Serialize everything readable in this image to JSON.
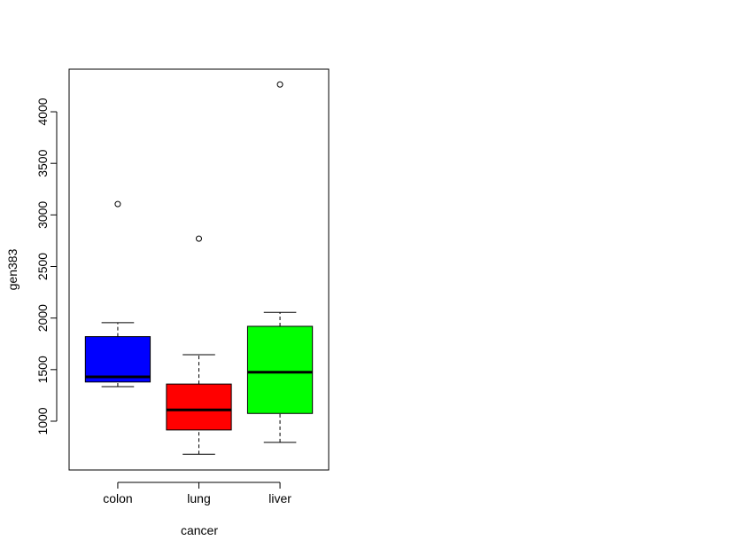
{
  "chart_data": {
    "type": "boxplot",
    "xlabel": "cancer",
    "ylabel": "gen383",
    "categories": [
      "colon",
      "lung",
      "liver"
    ],
    "boxes": [
      {
        "whisker_low": 1335,
        "q1": 1380,
        "median": 1430,
        "q3": 1820,
        "whisker_high": 1955,
        "outliers": [
          3105
        ],
        "color": "#0000ff"
      },
      {
        "whisker_low": 680,
        "q1": 915,
        "median": 1110,
        "q3": 1360,
        "whisker_high": 1645,
        "outliers": [
          2770
        ],
        "color": "#ff0000"
      },
      {
        "whisker_low": 795,
        "q1": 1075,
        "median": 1475,
        "q3": 1920,
        "whisker_high": 2055,
        "outliers": [
          4265
        ],
        "color": "#00ff00"
      }
    ],
    "ylim": [
      527,
      4413
    ],
    "yticks": [
      1000,
      1500,
      2000,
      2500,
      3000,
      3500,
      4000
    ]
  }
}
